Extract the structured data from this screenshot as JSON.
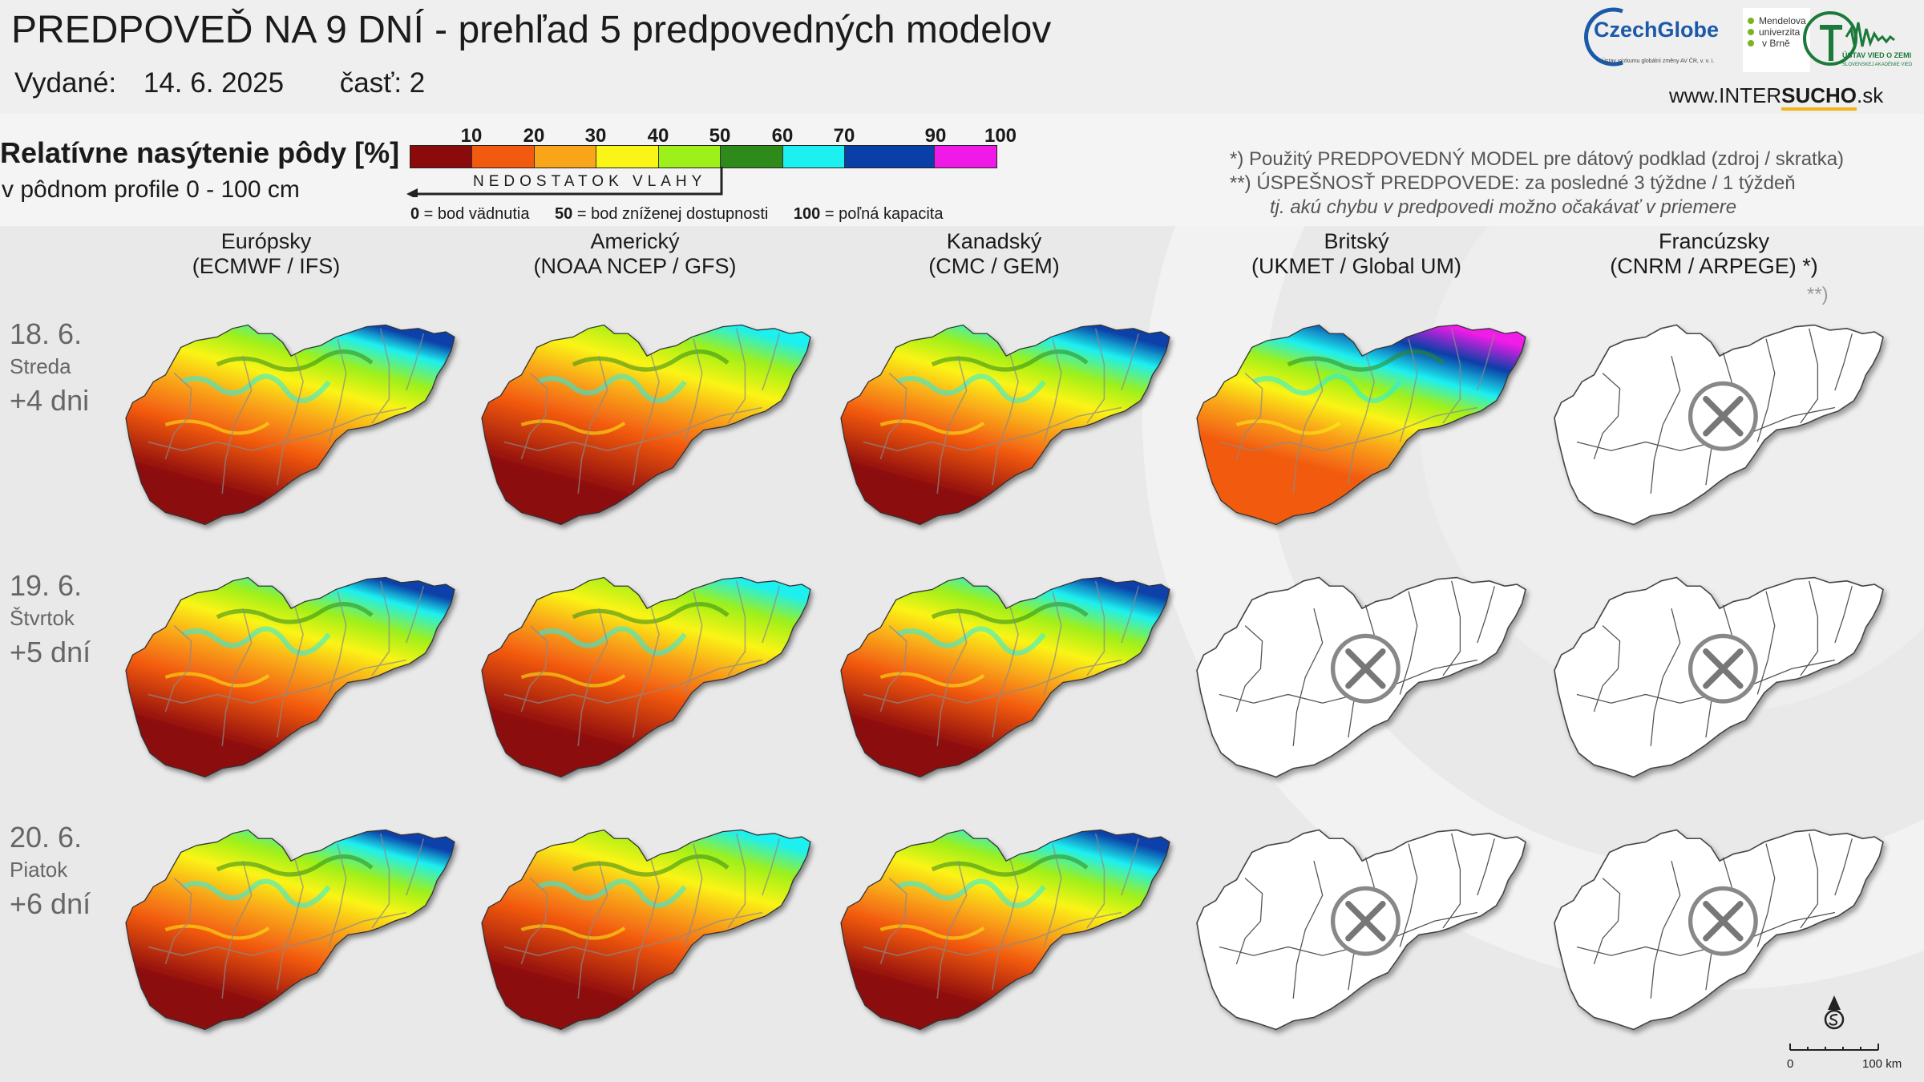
{
  "header": {
    "title": "PREDPOVEĎ NA 9 DNÍ - prehľad 5 predpovedných modelov",
    "issued_label": "Vydané:",
    "issued_date": "14. 6. 2025",
    "part": "časť: 2"
  },
  "logos": {
    "czechglobe": "CzechGlobe",
    "czechglobe_sub": "Ústav výzkumu globální změny AV ČR, v. v. i.",
    "mendel": [
      "Mendelova",
      "univerzita",
      "v Brně"
    ],
    "ustav": "ÚSTAV VIED O ZEMI",
    "ustav_sub": "SLOVENSKEJ AKADÉMIE VIED",
    "url_prefix": "www.INTER",
    "url_bold": "SUCHO",
    "url_suffix": ".sk"
  },
  "legend": {
    "title": "Relatívne nasýtenie pôdy [%]",
    "subtitle": "v pôdnom profile 0 - 100 cm",
    "ticks": [
      "10",
      "20",
      "30",
      "40",
      "50",
      "60",
      "70",
      "90",
      "100"
    ],
    "colors": [
      "#8b0a0a",
      "#f25a10",
      "#f9a51a",
      "#fbf417",
      "#9ef01a",
      "#2e8b1a",
      "#1df0f0",
      "#0a3fa8",
      "#f01ae8"
    ],
    "arrow_label": "NEDOSTATOK VLAHY",
    "def0_num": "0",
    "def0_text": " = bod vädnutia",
    "def50_num": "50",
    "def50_text": " =  bod zníženej dostupnosti",
    "def100_num": "100",
    "def100_text": " = poľná kapacita"
  },
  "notes": {
    "line1": "*)   Použitý PREDPOVEDNÝ MODEL pre dátový podklad (zdroj / skratka)",
    "line2": "**) ÚSPEŠNOSŤ PREDPOVEDE: za posledné 3 týždne / 1 týždeň",
    "line3": "tj. akú chybu v predpovedi možno očakávať v priemere",
    "col_note": "**)"
  },
  "columns": [
    {
      "name": "Európsky",
      "model": "(ECMWF / IFS)"
    },
    {
      "name": "Americký",
      "model": "(NOAA NCEP / GFS)"
    },
    {
      "name": "Kanadský",
      "model": "(CMC / GEM)"
    },
    {
      "name": "Britský",
      "model": "(UKMET / Global UM)"
    },
    {
      "name": "Francúzsky",
      "model": "(CNRM / ARPEGE) *)"
    }
  ],
  "rows": [
    {
      "date": "18. 6.",
      "weekday": "Streda",
      "lead": "+4 dni",
      "available": [
        true,
        true,
        true,
        true,
        false
      ]
    },
    {
      "date": "19. 6.",
      "weekday": "Štvrtok",
      "lead": "+5 dní",
      "available": [
        true,
        true,
        true,
        false,
        false
      ]
    },
    {
      "date": "20. 6.",
      "weekday": "Piatok",
      "lead": "+6 dní",
      "available": [
        true,
        true,
        true,
        false,
        false
      ]
    }
  ],
  "scale": {
    "zero": "0",
    "end": "100 km"
  }
}
